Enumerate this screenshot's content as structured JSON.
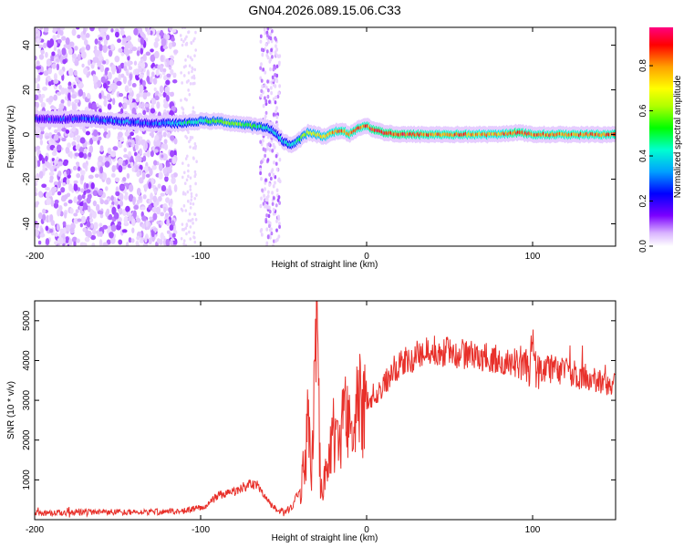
{
  "chart_data": [
    {
      "type": "heatmap",
      "title": "GN04.2026.089.15.06.C33",
      "xlabel": "Height of straight line (km)",
      "ylabel": "Frequency (Hz)",
      "xlim": [
        -200,
        150
      ],
      "ylim": [
        -50,
        48
      ],
      "xticks": [
        -200,
        -100,
        0,
        100
      ],
      "yticks": [
        -40,
        -20,
        0,
        20,
        40
      ],
      "grid": false,
      "colorbar": {
        "label": "Normalized spectral amplitude",
        "range": [
          0.0,
          0.97
        ],
        "ticks": [
          0.0,
          0.2,
          0.4,
          0.6,
          0.8
        ],
        "colormap": [
          "#ffffff",
          "#d9b3ff",
          "#7b00ff",
          "#0000ff",
          "#00a0ff",
          "#00ffd0",
          "#00ff00",
          "#b0ff00",
          "#ffff00",
          "#ffa000",
          "#ff0000",
          "#ff0080"
        ]
      },
      "ridge": {
        "x": [
          -200,
          -170,
          -150,
          -130,
          -110,
          -100,
          -90,
          -80,
          -70,
          -60,
          -55,
          -50,
          -45,
          -40,
          -35,
          -30,
          -25,
          -20,
          -15,
          -10,
          -5,
          0,
          5,
          10,
          20,
          40,
          60,
          80,
          90,
          100,
          120,
          150
        ],
        "freq": [
          7,
          7,
          6,
          5,
          5,
          6,
          6,
          5,
          4,
          3,
          1,
          -3,
          -5,
          -2,
          1,
          0,
          -1,
          1,
          2,
          0,
          3,
          4,
          2,
          1,
          0,
          0,
          0,
          0,
          1,
          0,
          0,
          0
        ],
        "amplitude": [
          0.25,
          0.3,
          0.35,
          0.3,
          0.45,
          0.5,
          0.55,
          0.6,
          0.55,
          0.45,
          0.4,
          0.4,
          0.45,
          0.55,
          0.65,
          0.7,
          0.75,
          0.8,
          0.85,
          0.85,
          0.85,
          0.85,
          0.9,
          0.9,
          0.9,
          0.85,
          0.85,
          0.8,
          0.9,
          0.85,
          0.85,
          0.85
        ]
      }
    },
    {
      "type": "line",
      "xlabel": "Height of straight line (km)",
      "ylabel": "SNR (10 * v/v)",
      "xlim": [
        -200,
        150
      ],
      "ylim": [
        0,
        5500
      ],
      "xticks": [
        -200,
        -100,
        0,
        100
      ],
      "yticks": [
        1000,
        2000,
        3000,
        4000,
        5000
      ],
      "grid": false,
      "series": [
        {
          "name": "SNR",
          "color": "#e8302a",
          "x": [
            -200,
            -180,
            -160,
            -140,
            -120,
            -110,
            -100,
            -95,
            -90,
            -85,
            -80,
            -75,
            -70,
            -65,
            -60,
            -55,
            -50,
            -45,
            -40,
            -37,
            -35,
            -33,
            -30,
            -28,
            -26,
            -24,
            -22,
            -20,
            -17,
            -15,
            -12,
            -10,
            -7,
            -5,
            -2,
            0,
            5,
            10,
            15,
            20,
            25,
            30,
            35,
            40,
            50,
            60,
            70,
            80,
            85,
            90,
            95,
            98,
            100,
            102,
            105,
            110,
            120,
            130,
            140,
            150
          ],
          "values": [
            150,
            180,
            200,
            180,
            200,
            220,
            300,
            400,
            600,
            650,
            700,
            800,
            900,
            850,
            500,
            250,
            200,
            300,
            800,
            1500,
            3000,
            1200,
            5000,
            1200,
            800,
            1100,
            1500,
            2200,
            1800,
            2500,
            2800,
            2600,
            2200,
            3000,
            2700,
            2900,
            3200,
            3400,
            3700,
            3900,
            4000,
            4100,
            4200,
            4250,
            4200,
            4150,
            4100,
            4050,
            4000,
            3950,
            3900,
            3800,
            4500,
            3700,
            3800,
            3800,
            3700,
            3600,
            3500,
            3400
          ]
        }
      ]
    }
  ]
}
